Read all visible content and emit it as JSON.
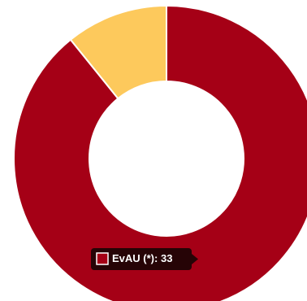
{
  "chart_data": {
    "type": "donut",
    "categories": [
      "EvAU (*)",
      null
    ],
    "values": [
      33,
      4
    ],
    "colors": [
      "#a50016",
      "#fdc95c"
    ],
    "tooltip_index": 0
  }
}
